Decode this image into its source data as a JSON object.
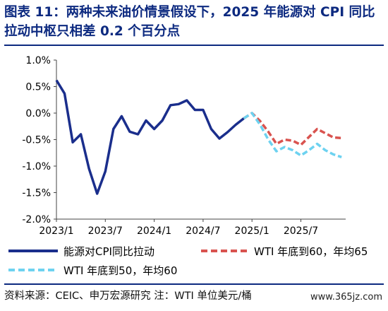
{
  "title": "图表 11：两种未来油价情景假设下，2025 年能源对 CPI 同比拉动中枢只相差 0.2 个百分点",
  "source": "资料来源：CEIC、申万宏源研究    注：WTI 单位美元/桶",
  "watermark": "www.365jz.com",
  "chart_data": {
    "type": "line",
    "title": "",
    "xlabel": "",
    "ylabel": "",
    "ylim": [
      -2.0,
      1.0
    ],
    "yticks": [
      1.0,
      0.5,
      0.0,
      -0.5,
      -1.0,
      -1.5,
      -2.0
    ],
    "ytick_labels": [
      "1.0%",
      "0.5%",
      "0.0%",
      "-0.5%",
      "-1.0%",
      "-1.5%",
      "-2.0%"
    ],
    "xticks": [
      "2023-01",
      "2023-07",
      "2024-01",
      "2024-07",
      "2025-01",
      "2025-07"
    ],
    "xtick_labels": [
      "2023/1",
      "2023/7",
      "2024/1",
      "2024/7",
      "2025/1",
      "2025/7"
    ],
    "grid": false,
    "legend_position": "bottom",
    "series": [
      {
        "name": "能源对CPI同比拉动",
        "color": "#1a2e8c",
        "style": "solid",
        "x": [
          "2023-01",
          "2023-02",
          "2023-03",
          "2023-04",
          "2023-05",
          "2023-06",
          "2023-07",
          "2023-08",
          "2023-09",
          "2023-10",
          "2023-11",
          "2023-12",
          "2024-01",
          "2024-02",
          "2024-03",
          "2024-04",
          "2024-05",
          "2024-06",
          "2024-07",
          "2024-08",
          "2024-09",
          "2024-10",
          "2024-11",
          "2024-12"
        ],
        "values": [
          0.62,
          0.37,
          -0.55,
          -0.4,
          -1.05,
          -1.52,
          -1.1,
          -0.3,
          -0.06,
          -0.35,
          -0.4,
          -0.14,
          -0.3,
          -0.14,
          0.15,
          0.17,
          0.24,
          0.06,
          0.06,
          -0.3,
          -0.48,
          -0.36,
          -0.22,
          -0.1
        ]
      },
      {
        "name": "WTI 年底到60，年均65",
        "color": "#d9534f",
        "style": "dashed",
        "x": [
          "2024-12",
          "2025-01",
          "2025-02",
          "2025-03",
          "2025-04",
          "2025-05",
          "2025-06",
          "2025-07",
          "2025-08",
          "2025-09",
          "2025-10",
          "2025-11",
          "2025-12"
        ],
        "values": [
          -0.1,
          0.0,
          -0.15,
          -0.35,
          -0.58,
          -0.5,
          -0.52,
          -0.6,
          -0.45,
          -0.3,
          -0.38,
          -0.46,
          -0.47
        ]
      },
      {
        "name": "WTI 年底到50，年均60",
        "color": "#6dd2f0",
        "style": "dashed",
        "x": [
          "2024-12",
          "2025-01",
          "2025-02",
          "2025-03",
          "2025-04",
          "2025-05",
          "2025-06",
          "2025-07",
          "2025-08",
          "2025-09",
          "2025-10",
          "2025-11",
          "2025-12"
        ],
        "values": [
          -0.1,
          0.0,
          -0.22,
          -0.5,
          -0.72,
          -0.64,
          -0.7,
          -0.8,
          -0.7,
          -0.58,
          -0.7,
          -0.78,
          -0.83
        ]
      }
    ]
  }
}
